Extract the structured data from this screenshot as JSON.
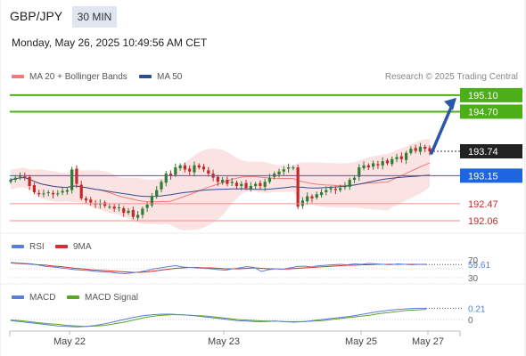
{
  "header": {
    "symbol": "GBP/JPY",
    "timeframe": "30 MIN",
    "datetime": "Monday, May 26, 2025 10:49:56 AM CET"
  },
  "legend": {
    "ma20": "MA 20 + Bollinger Bands",
    "ma50": "MA 50",
    "source": "Research © 2025 Trading Central",
    "rsi": "RSI",
    "rsi_ma": "9MA",
    "macd": "MACD",
    "macd_signal": "MACD Signal"
  },
  "colors": {
    "up": "#2e7d32",
    "down": "#c62828",
    "ma20": "#f07a7a",
    "ma50": "#2c4f8f",
    "bollinger": "#fbdada",
    "target": "#4caf18",
    "pivot": "#1e66e0",
    "support": "#ef8f8f",
    "arrow": "#2c57a8",
    "rsi": "#5b7fd6",
    "rsi_ma": "#d32f2f",
    "macd": "#5b7fd6",
    "macd_signal": "#5aa628"
  },
  "chart_data": [
    {
      "type": "candlestick",
      "title": "GBP/JPY",
      "x_ticks": [
        "May 22",
        "May 23",
        "May 25",
        "May 27"
      ],
      "ylim": [
        191.8,
        195.4
      ],
      "levels": [
        {
          "label": "195.10",
          "value": 195.1,
          "kind": "target"
        },
        {
          "label": "194.70",
          "value": 194.7,
          "kind": "target"
        },
        {
          "label": "193.74",
          "value": 193.74,
          "kind": "last"
        },
        {
          "label": "193.15",
          "value": 193.15,
          "kind": "pivot"
        },
        {
          "label": "192.47",
          "value": 192.47,
          "kind": "support"
        },
        {
          "label": "192.06",
          "value": 192.06,
          "kind": "support"
        }
      ],
      "closes": [
        193.05,
        193.1,
        193.15,
        193.12,
        192.9,
        192.75,
        192.7,
        192.72,
        192.75,
        192.7,
        192.72,
        192.78,
        192.8,
        193.3,
        192.95,
        192.6,
        192.55,
        192.5,
        192.45,
        192.48,
        192.42,
        192.4,
        192.35,
        192.38,
        192.25,
        192.3,
        192.15,
        192.2,
        192.35,
        192.45,
        192.65,
        192.8,
        193.0,
        193.2,
        193.15,
        193.35,
        193.4,
        193.3,
        193.25,
        193.4,
        193.35,
        193.3,
        193.2,
        193.1,
        193.0,
        193.05,
        192.95,
        193.0,
        192.9,
        192.95,
        192.85,
        192.9,
        192.95,
        192.9,
        193.0,
        193.1,
        193.2,
        193.25,
        193.3,
        193.35,
        193.35,
        192.4,
        192.55,
        192.65,
        192.6,
        192.7,
        192.75,
        192.8,
        192.85,
        192.8,
        192.85,
        192.9,
        193.05,
        193.1,
        193.35,
        193.4,
        193.35,
        193.45,
        193.4,
        193.5,
        193.45,
        193.55,
        193.6,
        193.55,
        193.7,
        193.8,
        193.75,
        193.85,
        193.8,
        193.74
      ],
      "annotations": [
        "arrow to 195.10"
      ]
    },
    {
      "type": "line",
      "title": "RSI",
      "ylim": [
        30,
        70
      ],
      "ticks": [
        "70",
        "30"
      ],
      "last_value": "59.61",
      "series": [
        {
          "name": "RSI",
          "values": [
            64,
            63,
            62,
            61,
            58,
            55,
            54,
            52,
            50,
            48,
            47,
            46,
            44,
            43,
            42,
            40,
            39,
            41,
            43,
            46,
            50,
            52,
            55,
            57,
            54,
            53,
            52,
            51,
            50,
            48,
            47,
            50,
            52,
            55,
            53,
            44,
            48,
            50,
            49,
            52,
            55,
            56,
            54,
            57,
            58,
            59,
            60,
            59,
            61,
            60,
            62,
            61,
            60,
            59,
            61,
            60,
            59,
            60,
            59.61
          ]
        },
        {
          "name": "9MA",
          "values": [
            63,
            62,
            61,
            60,
            59,
            58,
            56,
            55,
            53,
            51,
            50,
            48,
            47,
            46,
            45,
            44,
            43,
            42,
            42,
            43,
            45,
            47,
            49,
            51,
            52,
            53,
            53,
            52,
            52,
            51,
            50,
            50,
            50,
            51,
            52,
            51,
            50,
            50,
            49,
            50,
            51,
            52,
            53,
            54,
            55,
            56,
            57,
            58,
            58,
            59,
            59,
            60,
            60,
            60,
            60,
            60,
            60,
            60,
            60
          ]
        }
      ]
    },
    {
      "type": "line",
      "title": "MACD",
      "ticks": [
        "0"
      ],
      "last_value": "0.21",
      "series": [
        {
          "name": "MACD",
          "values": [
            -0.02,
            -0.04,
            -0.06,
            -0.08,
            -0.1,
            -0.12,
            -0.13,
            -0.14,
            -0.13,
            -0.11,
            -0.08,
            -0.04,
            0.0,
            0.04,
            0.07,
            0.09,
            0.1,
            0.1,
            0.09,
            0.08,
            0.06,
            0.04,
            0.02,
            0.0,
            -0.02,
            -0.03,
            -0.04,
            -0.04,
            -0.03,
            -0.04,
            -0.05,
            -0.04,
            -0.02,
            0.0,
            0.02,
            0.04,
            0.06,
            0.09,
            0.12,
            0.15,
            0.17,
            0.19,
            0.2,
            0.21,
            0.21
          ]
        },
        {
          "name": "MACD Signal",
          "values": [
            -0.01,
            -0.02,
            -0.04,
            -0.06,
            -0.08,
            -0.09,
            -0.11,
            -0.12,
            -0.13,
            -0.12,
            -0.11,
            -0.08,
            -0.05,
            -0.01,
            0.03,
            0.06,
            0.08,
            0.09,
            0.09,
            0.08,
            0.07,
            0.06,
            0.04,
            0.02,
            0.0,
            -0.01,
            -0.02,
            -0.03,
            -0.03,
            -0.04,
            -0.04,
            -0.04,
            -0.03,
            -0.02,
            0.0,
            0.02,
            0.04,
            0.06,
            0.08,
            0.11,
            0.13,
            0.15,
            0.17,
            0.18,
            0.19
          ]
        }
      ]
    }
  ]
}
